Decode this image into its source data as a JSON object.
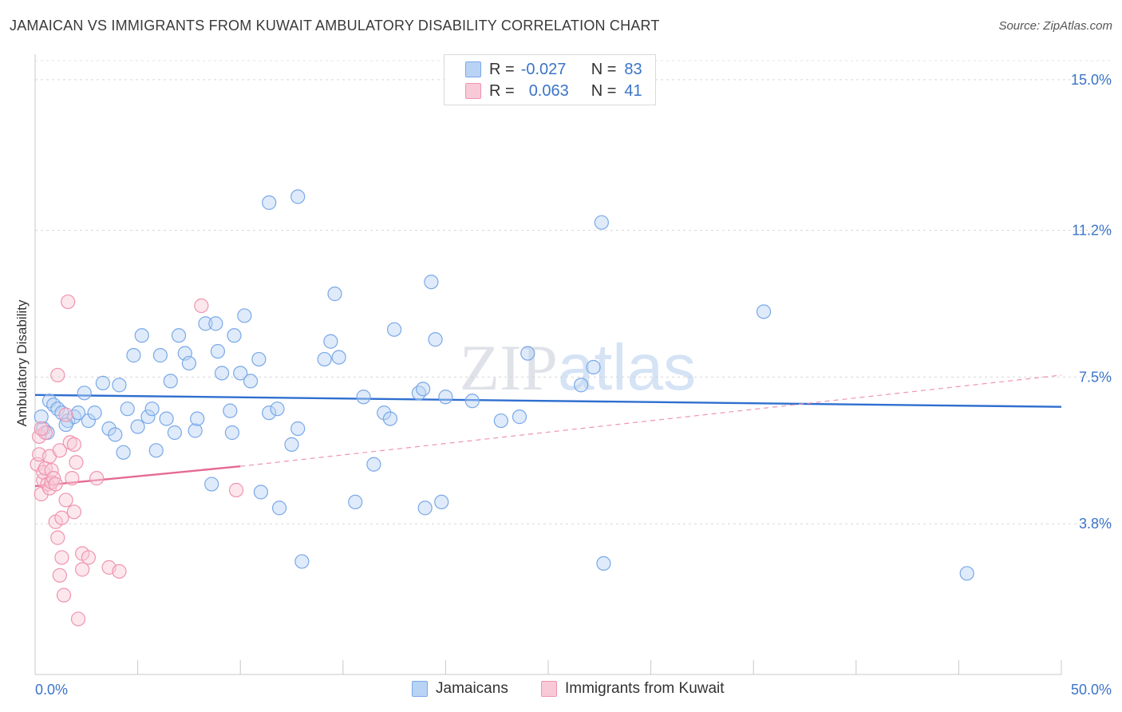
{
  "title": "JAMAICAN VS IMMIGRANTS FROM KUWAIT AMBULATORY DISABILITY CORRELATION CHART",
  "source": "Source: ZipAtlas.com",
  "watermark": "ZIPatlas",
  "legend": {
    "rows": [
      {
        "r_label": "R =",
        "r_value": "-0.027",
        "n_label": "N =",
        "n_value": "83",
        "color": "#7aa8e8",
        "fill": "#b9d3f5"
      },
      {
        "r_label": "R =",
        "r_value": "0.063",
        "n_label": "N =",
        "n_value": "41",
        "color": "#ef94b0",
        "fill": "#f8c9d7"
      }
    ]
  },
  "bottom_legend": {
    "jamaicans": "Jamaicans",
    "kuwait": "Immigrants from Kuwait"
  },
  "chart_data": {
    "type": "scatter",
    "title": "JAMAICAN VS IMMIGRANTS FROM KUWAIT AMBULATORY DISABILITY CORRELATION CHART",
    "xlabel": "",
    "ylabel": "Ambulatory Disability",
    "xlim": [
      0,
      50
    ],
    "ylim": [
      0,
      15.4
    ],
    "x_tick_labels": [
      "0.0%",
      "50.0%"
    ],
    "y_ticks": [
      3.8,
      7.5,
      11.2,
      15.0
    ],
    "y_tick_labels": [
      "3.8%",
      "7.5%",
      "11.2%",
      "15.0%"
    ],
    "grid": true,
    "series": [
      {
        "name": "Jamaicans",
        "color": "#7aa8e8",
        "trend": {
          "x": [
            0,
            50
          ],
          "y": [
            7.05,
            6.75
          ]
        },
        "points": [
          [
            0.4,
            6.2
          ],
          [
            0.6,
            6.1
          ],
          [
            0.7,
            6.9
          ],
          [
            0.9,
            6.8
          ],
          [
            1.1,
            6.7
          ],
          [
            1.3,
            6.6
          ],
          [
            1.6,
            6.4
          ],
          [
            1.9,
            6.5
          ],
          [
            2.1,
            6.6
          ],
          [
            2.4,
            7.1
          ],
          [
            2.6,
            6.4
          ],
          [
            2.9,
            6.6
          ],
          [
            3.3,
            7.35
          ],
          [
            3.6,
            6.2
          ],
          [
            3.9,
            6.05
          ],
          [
            4.1,
            7.3
          ],
          [
            4.3,
            5.6
          ],
          [
            4.5,
            6.7
          ],
          [
            4.8,
            8.05
          ],
          [
            5.0,
            6.25
          ],
          [
            5.2,
            8.55
          ],
          [
            5.5,
            6.5
          ],
          [
            5.7,
            6.7
          ],
          [
            5.9,
            5.65
          ],
          [
            6.1,
            8.05
          ],
          [
            6.4,
            6.45
          ],
          [
            6.6,
            7.4
          ],
          [
            6.8,
            6.1
          ],
          [
            7.0,
            8.55
          ],
          [
            7.3,
            8.1
          ],
          [
            7.5,
            7.85
          ],
          [
            7.8,
            6.15
          ],
          [
            7.9,
            6.45
          ],
          [
            8.3,
            8.85
          ],
          [
            8.6,
            4.8
          ],
          [
            8.8,
            8.85
          ],
          [
            8.9,
            8.15
          ],
          [
            9.1,
            7.6
          ],
          [
            9.5,
            6.65
          ],
          [
            9.6,
            6.1
          ],
          [
            9.7,
            8.55
          ],
          [
            10.0,
            7.6
          ],
          [
            10.2,
            9.05
          ],
          [
            10.5,
            7.4
          ],
          [
            10.9,
            7.95
          ],
          [
            11.0,
            4.6
          ],
          [
            11.4,
            6.6
          ],
          [
            11.4,
            11.9
          ],
          [
            11.8,
            6.7
          ],
          [
            11.9,
            4.2
          ],
          [
            12.5,
            5.8
          ],
          [
            12.8,
            6.2
          ],
          [
            12.8,
            12.05
          ],
          [
            13.0,
            2.85
          ],
          [
            14.1,
            7.95
          ],
          [
            14.4,
            8.4
          ],
          [
            14.6,
            9.6
          ],
          [
            14.8,
            8.0
          ],
          [
            15.6,
            4.35
          ],
          [
            16.0,
            7.0
          ],
          [
            16.5,
            5.3
          ],
          [
            17.0,
            6.6
          ],
          [
            17.3,
            6.45
          ],
          [
            17.5,
            8.7
          ],
          [
            18.7,
            7.1
          ],
          [
            18.9,
            7.2
          ],
          [
            19.0,
            4.2
          ],
          [
            19.3,
            9.9
          ],
          [
            19.5,
            8.45
          ],
          [
            19.8,
            4.35
          ],
          [
            20.0,
            7.0
          ],
          [
            21.3,
            6.9
          ],
          [
            22.7,
            6.4
          ],
          [
            23.6,
            6.5
          ],
          [
            24.0,
            8.1
          ],
          [
            26.6,
            7.3
          ],
          [
            27.2,
            7.75
          ],
          [
            27.6,
            11.4
          ],
          [
            27.7,
            2.8
          ],
          [
            35.5,
            9.15
          ],
          [
            45.4,
            2.55
          ],
          [
            0.3,
            6.5
          ],
          [
            1.5,
            6.3
          ]
        ]
      },
      {
        "name": "Immigrants from Kuwait",
        "color": "#ef94b0",
        "trend": {
          "x": [
            0,
            10.0
          ],
          "y": [
            4.75,
            5.25
          ],
          "dashed_x": [
            10.0,
            50
          ],
          "dashed_y": [
            5.25,
            7.55
          ]
        },
        "points": [
          [
            0.1,
            5.3
          ],
          [
            0.2,
            6.0
          ],
          [
            0.2,
            5.55
          ],
          [
            0.3,
            4.55
          ],
          [
            0.4,
            4.9
          ],
          [
            0.4,
            5.1
          ],
          [
            0.5,
            6.1
          ],
          [
            0.5,
            5.2
          ],
          [
            0.6,
            4.8
          ],
          [
            0.7,
            5.5
          ],
          [
            0.7,
            4.7
          ],
          [
            0.8,
            4.85
          ],
          [
            0.8,
            5.15
          ],
          [
            0.9,
            4.95
          ],
          [
            1.0,
            4.8
          ],
          [
            1.0,
            3.85
          ],
          [
            1.1,
            7.55
          ],
          [
            1.1,
            3.45
          ],
          [
            1.2,
            2.5
          ],
          [
            1.2,
            5.65
          ],
          [
            1.3,
            3.95
          ],
          [
            1.3,
            2.95
          ],
          [
            1.4,
            2.0
          ],
          [
            1.5,
            6.55
          ],
          [
            1.5,
            4.4
          ],
          [
            1.6,
            9.4
          ],
          [
            1.7,
            5.85
          ],
          [
            1.8,
            4.95
          ],
          [
            1.9,
            4.1
          ],
          [
            1.9,
            5.8
          ],
          [
            2.0,
            5.35
          ],
          [
            2.1,
            1.4
          ],
          [
            2.3,
            3.05
          ],
          [
            2.3,
            2.65
          ],
          [
            2.6,
            2.95
          ],
          [
            3.0,
            4.95
          ],
          [
            3.6,
            2.7
          ],
          [
            4.1,
            2.6
          ],
          [
            8.1,
            9.3
          ],
          [
            9.8,
            4.65
          ],
          [
            0.3,
            6.2
          ]
        ]
      }
    ]
  }
}
